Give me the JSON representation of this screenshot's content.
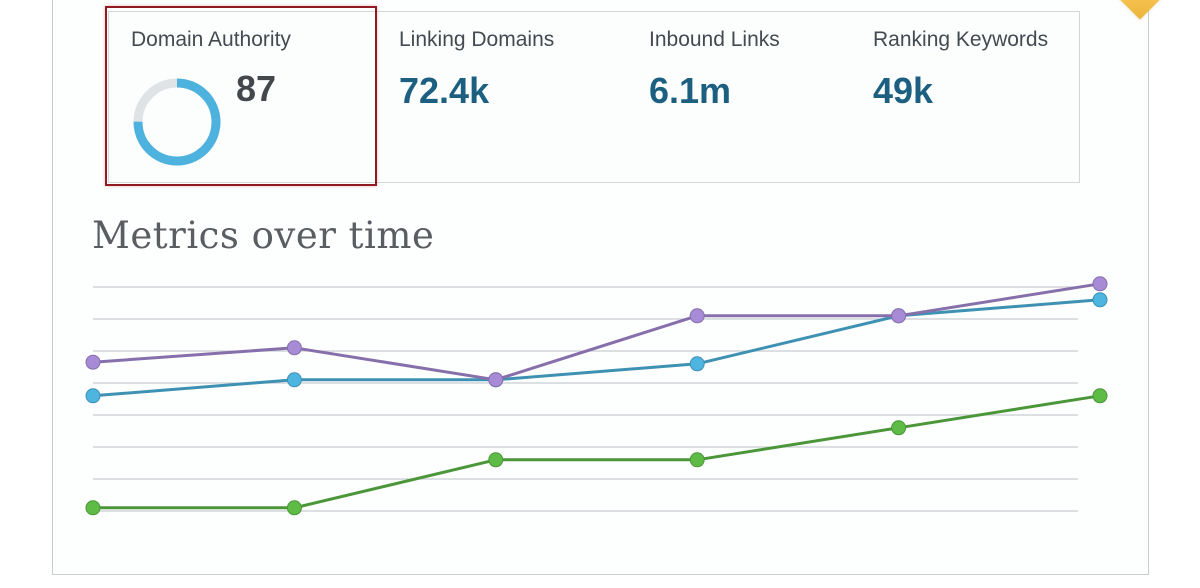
{
  "metrics": {
    "domain_authority": {
      "label": "Domain Authority",
      "value": "87",
      "gauge_percent": 75,
      "gauge_color": "#4db3de",
      "gauge_track": "#dfe3e6"
    },
    "linking_domains": {
      "label": "Linking Domains",
      "value": "72.4k"
    },
    "inbound_links": {
      "label": "Inbound Links",
      "value": "6.1m"
    },
    "ranking_keywords": {
      "label": "Ranking Keywords",
      "value": "49k"
    }
  },
  "chart_title": "Metrics over time",
  "colors": {
    "accent_value": "#1d5f80",
    "highlight": "#8e1c22",
    "gridline": "#c9cdd1"
  },
  "chart_data": {
    "type": "line",
    "title": "Metrics over time",
    "xlabel": "",
    "ylabel": "",
    "x": [
      1,
      2,
      3,
      4,
      5,
      6
    ],
    "grid": true,
    "gridlines": 8,
    "ylim": [
      0,
      7
    ],
    "legend": "none",
    "series": [
      {
        "name": "purple",
        "color": "#a88bd6",
        "values": [
          4.65,
          5.1,
          4.1,
          6.1,
          6.1,
          7.1
        ]
      },
      {
        "name": "blue",
        "color": "#4db5e0",
        "values": [
          3.6,
          4.1,
          4.1,
          4.6,
          6.1,
          6.6
        ]
      },
      {
        "name": "green",
        "color": "#5dbb46",
        "values": [
          0.1,
          0.1,
          1.6,
          1.6,
          2.6,
          3.6
        ]
      }
    ]
  }
}
